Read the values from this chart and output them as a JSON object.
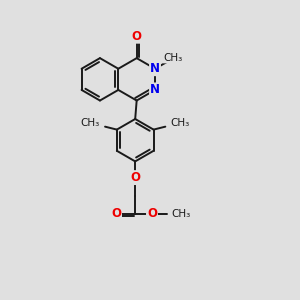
{
  "bg_color": "#e0e0e0",
  "bond_color": "#1a1a1a",
  "bond_width": 1.4,
  "N_color": "#0000ee",
  "O_color": "#ee0000",
  "font_size_atom": 8.5,
  "font_size_label": 7.5,
  "fig_size": [
    3.0,
    3.0
  ],
  "dpi": 100,
  "xlim": [
    0,
    10
  ],
  "ylim": [
    0,
    10
  ]
}
